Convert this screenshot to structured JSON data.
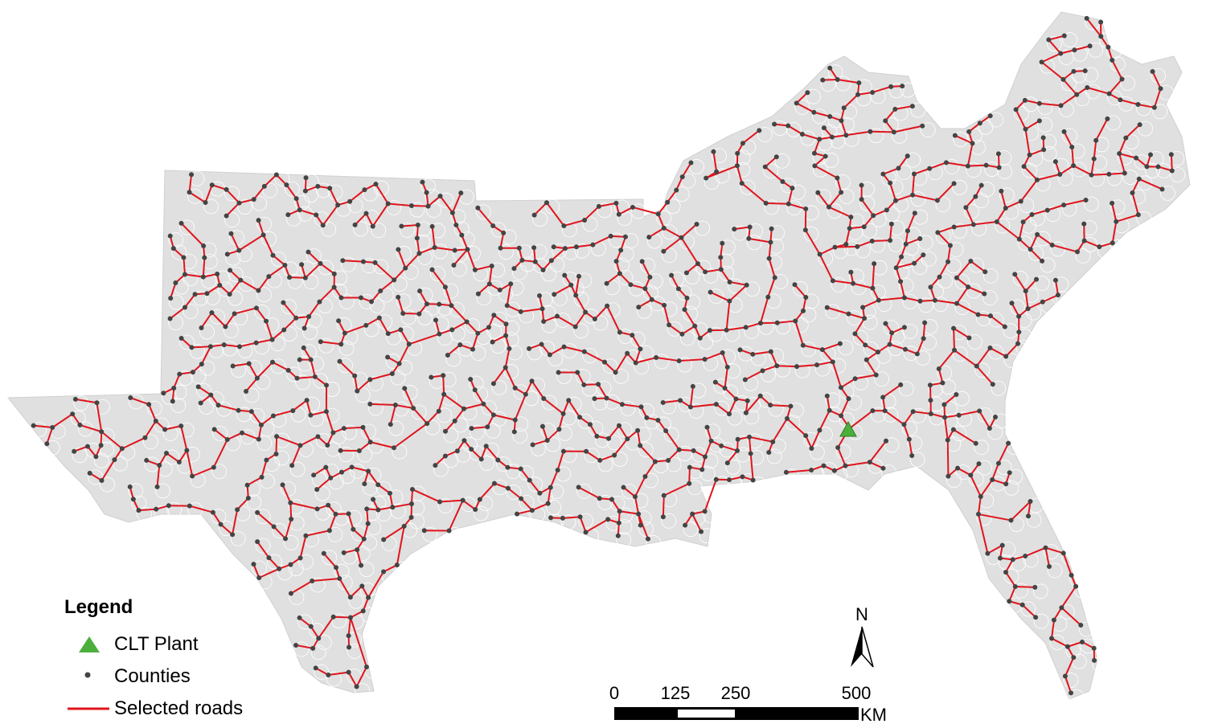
{
  "legend": {
    "title": "Legend",
    "items": [
      {
        "label": "CLT Plant",
        "symbol": "triangle",
        "color": "#4caf3c"
      },
      {
        "label": "Counties",
        "symbol": "dot",
        "color": "#444444"
      },
      {
        "label": "Selected roads",
        "symbol": "line",
        "color": "#e0141c"
      }
    ]
  },
  "scale_bar": {
    "ticks": [
      "0",
      "125",
      "250",
      "500"
    ],
    "unit": "KM"
  },
  "north_arrow": {
    "label": "N"
  },
  "colors": {
    "land": "#e0e0e0",
    "county_border": "#ffffff",
    "road": "#e0141c",
    "county_dot": "#444444",
    "plant": "#4caf3c"
  }
}
